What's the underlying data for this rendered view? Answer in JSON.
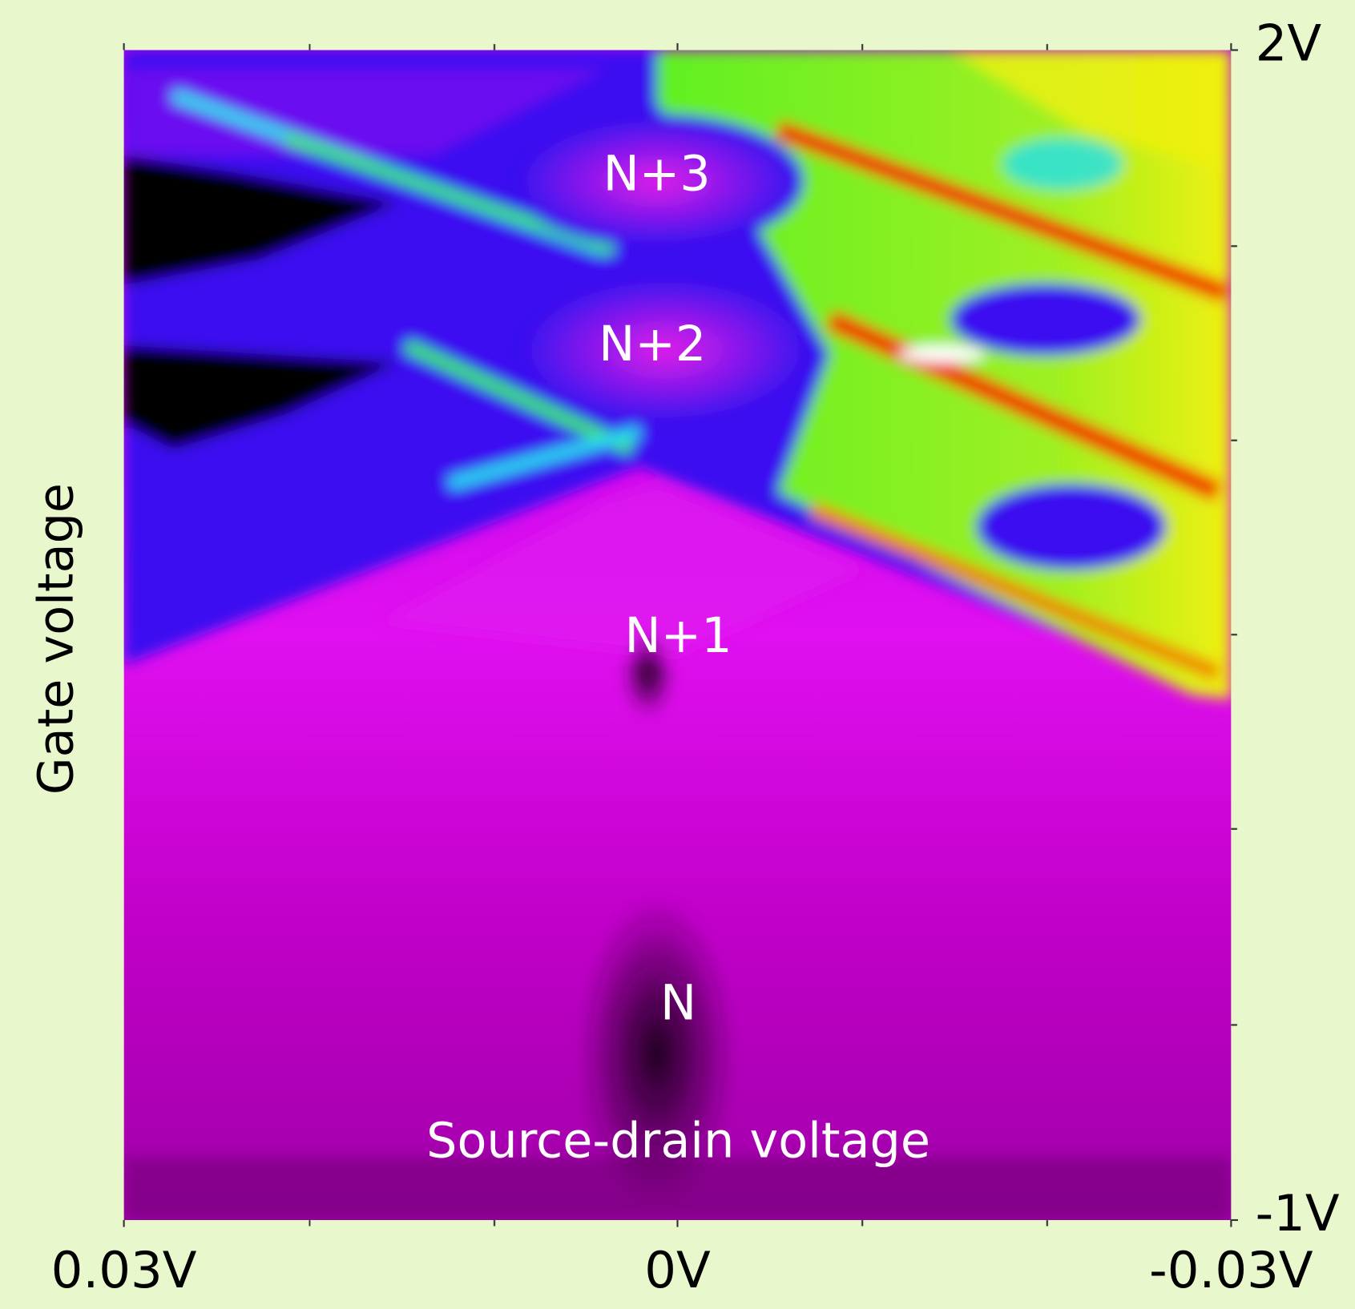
{
  "chart_data": {
    "type": "heatmap",
    "xlabel": "Source-drain voltage",
    "ylabel": "Gate voltage",
    "xlim": [
      0.03,
      -0.03
    ],
    "ylim": [
      -1,
      2
    ],
    "xticks": [
      {
        "value": 0.03,
        "label": "0.03V"
      },
      {
        "value": 0,
        "label": "0V"
      },
      {
        "value": -0.03,
        "label": "-0.03V"
      }
    ],
    "yticks": [
      {
        "value": -1,
        "label": "-1V"
      },
      {
        "value": 2,
        "label": "2V"
      }
    ],
    "annotations": [
      "N+3",
      "N+2",
      "N+1",
      "N"
    ]
  }
}
